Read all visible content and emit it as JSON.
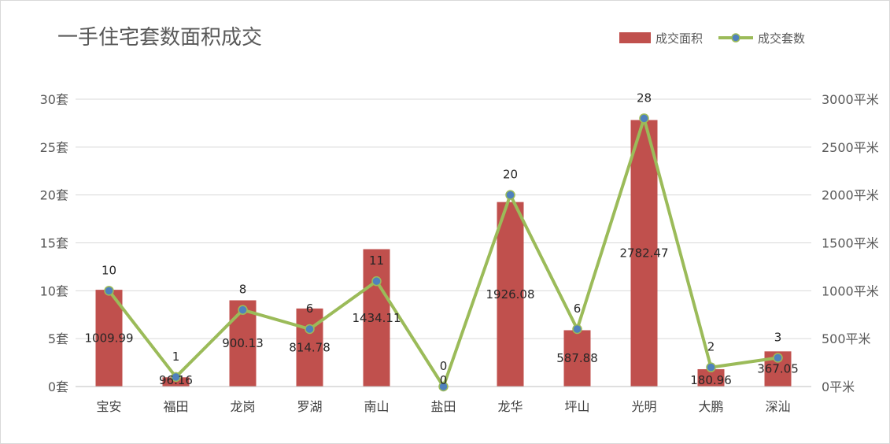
{
  "chart_data": {
    "type": "bar",
    "title": "一手住宅套数面积成交",
    "categories": [
      "宝安",
      "福田",
      "龙岗",
      "罗湖",
      "南山",
      "盐田",
      "龙华",
      "坪山",
      "光明",
      "大鹏",
      "深汕"
    ],
    "series": [
      {
        "name": "成交面积",
        "type": "bar",
        "axis": "right",
        "color": "#c0504d",
        "values": [
          1009.99,
          96.16,
          900.13,
          814.78,
          1434.11,
          0,
          1926.08,
          587.88,
          2782.47,
          180.96,
          367.05
        ],
        "labels": [
          "1009.99",
          "96.16",
          "900.13",
          "814.78",
          "1434.11",
          "0",
          "1926.08",
          "587.88",
          "2782.47",
          "180.96",
          "367.05"
        ]
      },
      {
        "name": "成交套数",
        "type": "line",
        "axis": "left",
        "color": "#9bbb59",
        "marker_color": "#4f81bd",
        "values": [
          10,
          1,
          8,
          6,
          11,
          0,
          20,
          6,
          28,
          2,
          3
        ],
        "labels": [
          "10",
          "1",
          "8",
          "6",
          "11",
          "0",
          "20",
          "6",
          "28",
          "2",
          "3"
        ]
      }
    ],
    "y_left": {
      "range": [
        0,
        30
      ],
      "ticks": [
        0,
        5,
        10,
        15,
        20,
        25,
        30
      ],
      "tick_labels": [
        "0套",
        "5套",
        "10套",
        "15套",
        "20套",
        "25套",
        "30套"
      ]
    },
    "y_right": {
      "range": [
        0,
        3000
      ],
      "ticks": [
        0,
        500,
        1000,
        1500,
        2000,
        2500,
        3000
      ],
      "tick_labels": [
        "0平米",
        "500平米",
        "1000平米",
        "1500平米",
        "2000平米",
        "2500平米",
        "3000平米"
      ]
    },
    "grid": true,
    "legend_position": "top-right"
  }
}
